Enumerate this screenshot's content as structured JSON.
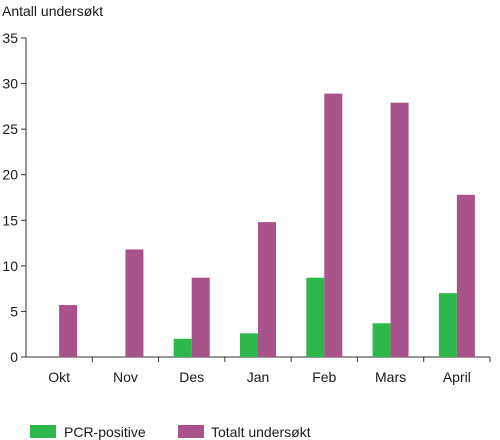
{
  "chart_data": {
    "type": "bar",
    "title": "",
    "xlabel": "",
    "ylabel": "Antall undersøkt",
    "ylim": [
      0,
      35
    ],
    "yticks": [
      0,
      5,
      10,
      15,
      20,
      25,
      30,
      35
    ],
    "grid": false,
    "legend_position": "bottom",
    "categories": [
      "Okt",
      "Nov",
      "Des",
      "Jan",
      "Feb",
      "Mars",
      "April"
    ],
    "series": [
      {
        "name": "PCR-positive",
        "color": "#2eb84b",
        "values": [
          0,
          0,
          2,
          2.6,
          8.7,
          3.7,
          7
        ]
      },
      {
        "name": "Totalt undersøkt",
        "color": "#a8538a",
        "values": [
          5.7,
          11.8,
          8.7,
          14.8,
          28.9,
          27.9,
          17.8
        ]
      }
    ]
  }
}
